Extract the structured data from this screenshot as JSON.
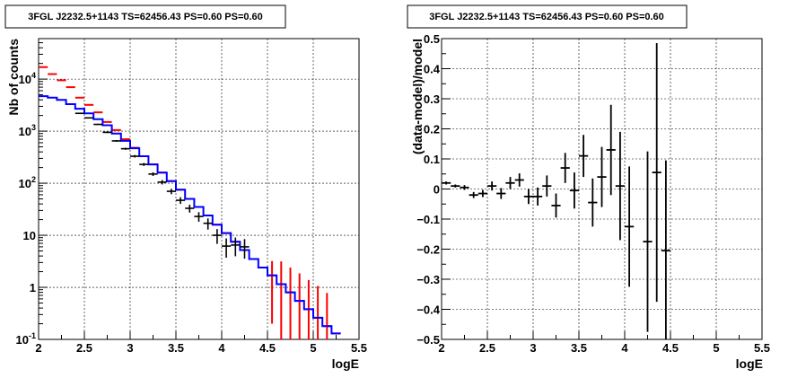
{
  "chart_data": [
    {
      "type": "step",
      "title": "3FGL J2232.5+1143 TS=62456.43 PS=0.60 PS=0.60",
      "xlabel": "logE",
      "ylabel": "Nb of counts",
      "xlim": [
        2,
        5.5
      ],
      "ylim": [
        0.1,
        60000
      ],
      "yscale": "log",
      "grid": true,
      "x_ticks": [
        "2",
        "2.5",
        "3",
        "3.5",
        "4",
        "4.5",
        "5",
        "5.5"
      ],
      "y_ticks": [
        "10^-1",
        "1",
        "10",
        "10^2",
        "10^3",
        "10^4"
      ],
      "bin_edges": [
        2.0,
        2.1,
        2.2,
        2.3,
        2.4,
        2.5,
        2.6,
        2.7,
        2.8,
        2.9,
        3.0,
        3.1,
        3.2,
        3.3,
        3.4,
        3.5,
        3.6,
        3.7,
        3.8,
        3.9,
        4.0,
        4.1,
        4.2,
        4.3,
        4.4,
        4.5,
        4.6,
        4.7,
        4.8,
        4.9,
        5.0,
        5.1,
        5.2,
        5.3
      ],
      "series": [
        {
          "role": "model-red",
          "color": "#ff0000",
          "values": [
            17000,
            12500,
            9500,
            7000,
            4400,
            3200,
            2300,
            1500,
            1050,
            700,
            480,
            330,
            230,
            160,
            110,
            75,
            50,
            35,
            24,
            16,
            11,
            7.5,
            5.2,
            3.5,
            2.4,
            1.7,
            1.15,
            0.8,
            0.55,
            0.38,
            0.26,
            0.18,
            0.13
          ],
          "errors": [
            0,
            0,
            0,
            0,
            0,
            0,
            0,
            0,
            0,
            0,
            0,
            0,
            0,
            0,
            0,
            0,
            0,
            0,
            0,
            0,
            0,
            0,
            0,
            0,
            0,
            1.5,
            2,
            1.6,
            1.3,
            1,
            0.8,
            0.6,
            0
          ]
        },
        {
          "role": "model-blue",
          "color": "#0000ff",
          "values": [
            4700,
            4400,
            4000,
            3300,
            2700,
            2200,
            1700,
            1300,
            900,
            650,
            470,
            330,
            230,
            160,
            110,
            75,
            50,
            35,
            24,
            16,
            11,
            7.5,
            5.2,
            3.5,
            2.4,
            1.7,
            1.15,
            0.8,
            0.55,
            0.38,
            0.26,
            0.18,
            0.13
          ]
        },
        {
          "role": "data",
          "color": "#000000",
          "x": [
            2.45,
            2.55,
            2.65,
            2.75,
            2.85,
            2.95,
            3.05,
            3.15,
            3.25,
            3.35,
            3.45,
            3.55,
            3.65,
            3.75,
            3.85,
            3.95,
            4.05,
            4.15,
            4.25
          ],
          "y": [
            2200,
            1800,
            1350,
            950,
            650,
            460,
            330,
            230,
            150,
            105,
            70,
            47,
            33,
            23,
            17,
            10,
            6.2,
            6.5,
            6
          ],
          "xerr": 0.05
        }
      ]
    },
    {
      "type": "errorbar",
      "title": "3FGL J2232.5+1143 TS=62456.43 PS=0.60 PS=0.60",
      "xlabel": "logE",
      "ylabel": "(data-model)/model",
      "xlim": [
        2,
        5.5
      ],
      "ylim": [
        -0.5,
        0.5
      ],
      "grid": true,
      "x_ticks": [
        "2",
        "2.5",
        "3",
        "3.5",
        "4",
        "4.5",
        "5",
        "5.5"
      ],
      "y_ticks": [
        "−0.5",
        "−0.4",
        "−0.3",
        "−0.2",
        "−0.1",
        "0",
        "0.1",
        "0.2",
        "0.3",
        "0.4",
        "0.5"
      ],
      "series": [
        {
          "role": "residuals",
          "color": "#000000",
          "xerr": 0.05,
          "x": [
            2.05,
            2.15,
            2.25,
            2.35,
            2.45,
            2.55,
            2.65,
            2.75,
            2.85,
            2.95,
            3.05,
            3.15,
            3.25,
            3.35,
            3.45,
            3.55,
            3.65,
            3.75,
            3.85,
            3.95,
            4.05,
            4.25,
            4.35,
            4.45
          ],
          "y": [
            0.02,
            0.01,
            0.005,
            -0.02,
            -0.015,
            0.01,
            -0.015,
            0.02,
            0.03,
            -0.025,
            -0.025,
            0.01,
            -0.055,
            0.07,
            -0.005,
            0.11,
            -0.045,
            0.04,
            0.13,
            0.01,
            -0.125,
            -0.175,
            0.055,
            -0.205
          ],
          "yerr": [
            0.005,
            0.005,
            0.008,
            0.01,
            0.012,
            0.015,
            0.018,
            0.02,
            0.022,
            0.025,
            0.03,
            0.035,
            0.04,
            0.05,
            0.06,
            0.07,
            0.08,
            0.1,
            0.15,
            0.18,
            0.2,
            0.3,
            0.43,
            0.3
          ]
        }
      ]
    }
  ]
}
